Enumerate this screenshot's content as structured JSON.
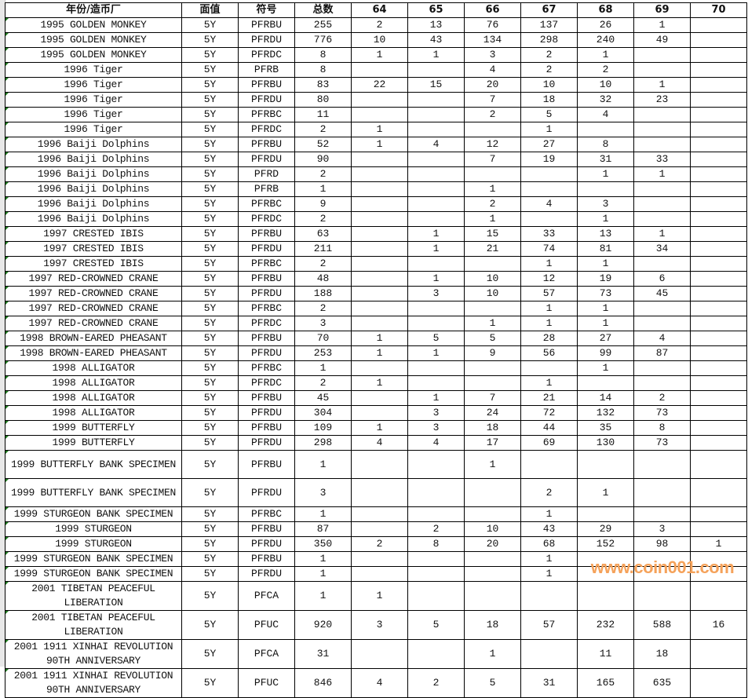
{
  "header": [
    "年份/造币厂",
    "面值",
    "符号",
    "总数",
    "64",
    "65",
    "66",
    "67",
    "68",
    "69",
    "70"
  ],
  "rows": [
    [
      "1995 GOLDEN MONKEY",
      "5Y",
      "PFRBU",
      "255",
      "2",
      "13",
      "76",
      "137",
      "26",
      "1",
      ""
    ],
    [
      "1995 GOLDEN MONKEY",
      "5Y",
      "PFRDU",
      "776",
      "10",
      "43",
      "134",
      "298",
      "240",
      "49",
      ""
    ],
    [
      "1995 GOLDEN MONKEY",
      "5Y",
      "PFRDC",
      "8",
      "1",
      "1",
      "3",
      "2",
      "1",
      "",
      ""
    ],
    [
      "1996 Tiger",
      "5Y",
      "PFRB",
      "8",
      "",
      "",
      "4",
      "2",
      "2",
      "",
      ""
    ],
    [
      "1996 Tiger",
      "5Y",
      "PFRBU",
      "83",
      "22",
      "15",
      "20",
      "10",
      "10",
      "1",
      ""
    ],
    [
      "1996 Tiger",
      "5Y",
      "PFRDU",
      "80",
      "",
      "",
      "7",
      "18",
      "32",
      "23",
      ""
    ],
    [
      "1996 Tiger",
      "5Y",
      "PFRBC",
      "11",
      "",
      "",
      "2",
      "5",
      "4",
      "",
      ""
    ],
    [
      "1996 Tiger",
      "5Y",
      "PFRDC",
      "2",
      "1",
      "",
      "",
      "1",
      "",
      "",
      ""
    ],
    [
      "1996 Baiji Dolphins",
      "5Y",
      "PFRBU",
      "52",
      "1",
      "4",
      "12",
      "27",
      "8",
      "",
      ""
    ],
    [
      "1996 Baiji Dolphins",
      "5Y",
      "PFRDU",
      "90",
      "",
      "",
      "7",
      "19",
      "31",
      "33",
      ""
    ],
    [
      "1996 Baiji Dolphins",
      "5Y",
      "PFRD",
      "2",
      "",
      "",
      "",
      "",
      "1",
      "1",
      ""
    ],
    [
      "1996 Baiji Dolphins",
      "5Y",
      "PFRB",
      "1",
      "",
      "",
      "1",
      "",
      "",
      "",
      ""
    ],
    [
      "1996 Baiji Dolphins",
      "5Y",
      "PFRBC",
      "9",
      "",
      "",
      "2",
      "4",
      "3",
      "",
      ""
    ],
    [
      "1996 Baiji Dolphins",
      "5Y",
      "PFRDC",
      "2",
      "",
      "",
      "1",
      "",
      "1",
      "",
      ""
    ],
    [
      "1997 CRESTED IBIS",
      "5Y",
      "PFRBU",
      "63",
      "",
      "1",
      "15",
      "33",
      "13",
      "1",
      ""
    ],
    [
      "1997 CRESTED IBIS",
      "5Y",
      "PFRDU",
      "211",
      "",
      "1",
      "21",
      "74",
      "81",
      "34",
      ""
    ],
    [
      "1997 CRESTED IBIS",
      "5Y",
      "PFRBC",
      "2",
      "",
      "",
      "",
      "1",
      "1",
      "",
      ""
    ],
    [
      "1997 RED-CROWNED CRANE",
      "5Y",
      "PFRBU",
      "48",
      "",
      "1",
      "10",
      "12",
      "19",
      "6",
      ""
    ],
    [
      "1997 RED-CROWNED CRANE",
      "5Y",
      "PFRDU",
      "188",
      "",
      "3",
      "10",
      "57",
      "73",
      "45",
      ""
    ],
    [
      "1997 RED-CROWNED CRANE",
      "5Y",
      "PFRBC",
      "2",
      "",
      "",
      "",
      "1",
      "1",
      "",
      ""
    ],
    [
      "1997 RED-CROWNED CRANE",
      "5Y",
      "PFRDC",
      "3",
      "",
      "",
      "1",
      "1",
      "1",
      "",
      ""
    ],
    [
      "1998 BROWN-EARED PHEASANT",
      "5Y",
      "PFRBU",
      "70",
      "1",
      "5",
      "5",
      "28",
      "27",
      "4",
      ""
    ],
    [
      "1998 BROWN-EARED PHEASANT",
      "5Y",
      "PFRDU",
      "253",
      "1",
      "1",
      "9",
      "56",
      "99",
      "87",
      ""
    ],
    [
      "1998 ALLIGATOR",
      "5Y",
      "PFRBC",
      "1",
      "",
      "",
      "",
      "",
      "1",
      "",
      ""
    ],
    [
      "1998 ALLIGATOR",
      "5Y",
      "PFRDC",
      "2",
      "1",
      "",
      "",
      "1",
      "",
      "",
      ""
    ],
    [
      "1998 ALLIGATOR",
      "5Y",
      "PFRBU",
      "45",
      "",
      "1",
      "7",
      "21",
      "14",
      "2",
      ""
    ],
    [
      "1998 ALLIGATOR",
      "5Y",
      "PFRDU",
      "304",
      "",
      "3",
      "24",
      "72",
      "132",
      "73",
      ""
    ],
    [
      "1999 BUTTERFLY",
      "5Y",
      "PFRBU",
      "109",
      "1",
      "3",
      "18",
      "44",
      "35",
      "8",
      ""
    ],
    [
      "1999 BUTTERFLY",
      "5Y",
      "PFRDU",
      "298",
      "4",
      "4",
      "17",
      "69",
      "130",
      "73",
      ""
    ],
    [
      "1999 BUTTERFLY BANK SPECIMEN",
      "5Y",
      "PFRBU",
      "1",
      "",
      "",
      "1",
      "",
      "",
      "",
      ""
    ],
    [
      "1999 BUTTERFLY BANK SPECIMEN",
      "5Y",
      "PFRDU",
      "3",
      "",
      "",
      "",
      "2",
      "1",
      "",
      ""
    ],
    [
      "1999 STURGEON BANK SPECIMEN",
      "5Y",
      "PFRBC",
      "1",
      "",
      "",
      "",
      "1",
      "",
      "",
      ""
    ],
    [
      "1999 STURGEON",
      "5Y",
      "PFRBU",
      "87",
      "",
      "2",
      "10",
      "43",
      "29",
      "3",
      ""
    ],
    [
      "1999 STURGEON",
      "5Y",
      "PFRDU",
      "350",
      "2",
      "8",
      "20",
      "68",
      "152",
      "98",
      "1"
    ],
    [
      "1999 STURGEON BANK SPECIMEN",
      "5Y",
      "PFRBU",
      "1",
      "",
      "",
      "",
      "1",
      "",
      "",
      ""
    ],
    [
      "1999 STURGEON BANK SPECIMEN",
      "5Y",
      "PFRDU",
      "1",
      "",
      "",
      "",
      "1",
      "",
      "",
      ""
    ],
    [
      "2001 TIBETAN PEACEFUL LIBERATION",
      "5Y",
      "PFCA",
      "1",
      "1",
      "",
      "",
      "",
      "",
      "",
      ""
    ],
    [
      "2001 TIBETAN PEACEFUL LIBERATION",
      "5Y",
      "PFUC",
      "920",
      "3",
      "5",
      "18",
      "57",
      "232",
      "588",
      "16"
    ],
    [
      "2001 1911 XINHAI REVOLUTION 90TH ANNIVERSARY",
      "5Y",
      "PFCA",
      "31",
      "",
      "",
      "1",
      "",
      "11",
      "18",
      ""
    ],
    [
      "2001 1911 XINHAI REVOLUTION 90TH ANNIVERSARY",
      "5Y",
      "PFUC",
      "846",
      "4",
      "2",
      "5",
      "31",
      "165",
      "635",
      ""
    ]
  ],
  "watermark": "www.coin001.com"
}
